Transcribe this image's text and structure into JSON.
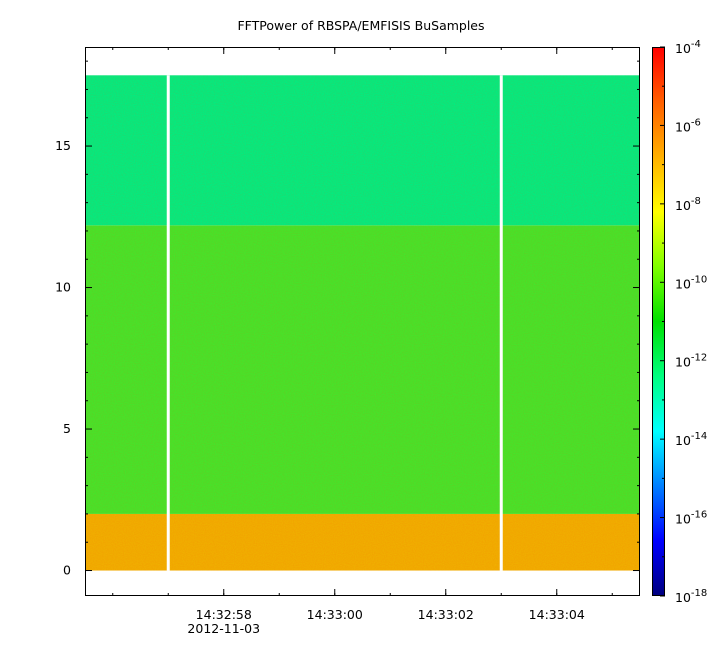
{
  "chart_data": {
    "type": "heatmap",
    "title": "FFTPower of RBSPA/EMFISIS  BuSamples",
    "xlabel": "",
    "ylabel": "",
    "x_tick_labels": [
      "14:32:58",
      "14:33:00",
      "14:33:02",
      "14:33:04"
    ],
    "x_date_label": "2012-11-03",
    "xlim": [
      "14:32:55.5",
      "14:33:05.5"
    ],
    "y_ticks": [
      0,
      5,
      10,
      15
    ],
    "ylim": [
      -0.9,
      18.5
    ],
    "zscale": "log",
    "zlim": [
      1e-18,
      0.0001
    ],
    "colorbar_ticks": [
      {
        "base": "10",
        "exp": "-4",
        "value": 0.0001
      },
      {
        "base": "10",
        "exp": "-6",
        "value": 1e-06
      },
      {
        "base": "10",
        "exp": "-8",
        "value": 1e-08
      },
      {
        "base": "10",
        "exp": "-10",
        "value": 1e-10
      },
      {
        "base": "10",
        "exp": "-12",
        "value": 1e-12
      },
      {
        "base": "10",
        "exp": "-14",
        "value": 1e-14
      },
      {
        "base": "10",
        "exp": "-16",
        "value": 1e-16
      },
      {
        "base": "10",
        "exp": "-18",
        "value": 1e-18
      }
    ],
    "colormap": [
      "#00007f",
      "#0000ff",
      "#007fff",
      "#00ffff",
      "#00ff80",
      "#00e000",
      "#80ff00",
      "#ffff00",
      "#ffb000",
      "#ff6000",
      "#ff0000"
    ],
    "data_y_range": [
      0,
      17.5
    ],
    "frequency_bands": [
      {
        "y_range": [
          0,
          2.0
        ],
        "log_power": -7.5,
        "color": "#f0b000"
      },
      {
        "y_range": [
          2.0,
          12.2
        ],
        "log_power": -10.5,
        "color": "#44e62a"
      },
      {
        "y_range": [
          12.2,
          17.5
        ],
        "log_power": -11.8,
        "color": "#00ee80"
      }
    ],
    "data_gaps": [
      "14:32:57.0",
      "14:33:03.0"
    ],
    "grid": false
  }
}
